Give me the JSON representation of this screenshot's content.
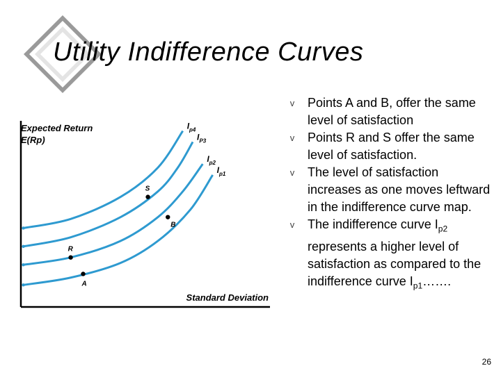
{
  "slide": {
    "title": "Utility Indifference Curves",
    "page_number": "26"
  },
  "bullets": [
    {
      "marker": "v",
      "text": "Points A and B, offer the same level of satisfaction"
    },
    {
      "marker": "v",
      "text": "Points R and S offer the same level of satisfaction."
    },
    {
      "marker": "v",
      "text": "The level of satisfaction increases as one moves leftward in the indifference curve map."
    },
    {
      "marker": "v",
      "parts": {
        "before": "The indifference curve I",
        "sub1": "p2",
        "middle": " represents a higher level of satisfaction as compared to the indifference curve I",
        "sub2": "p1",
        "after": "……."
      }
    }
  ],
  "chart_data": {
    "type": "line",
    "title": "",
    "xlabel": "Standard Deviation",
    "ylabel_line1": "Expected Return",
    "ylabel_line2": "E(Rp)",
    "xlim": [
      0,
      10
    ],
    "ylim": [
      0,
      10
    ],
    "grid": false,
    "series": [
      {
        "name": "Ip4",
        "x": [
          0.1,
          2,
          4,
          5.5,
          6.5
        ],
        "y": [
          4.3,
          4.8,
          6.0,
          7.6,
          9.6
        ]
      },
      {
        "name": "Ip3",
        "x": [
          0.1,
          2,
          4,
          5.5,
          6.3,
          6.9
        ],
        "y": [
          3.3,
          3.8,
          4.9,
          6.3,
          7.6,
          9.0
        ]
      },
      {
        "name": "Ip2",
        "x": [
          0.1,
          2,
          4,
          5.5,
          6.5,
          7.3
        ],
        "y": [
          2.3,
          2.7,
          3.6,
          4.9,
          6.3,
          7.8
        ]
      },
      {
        "name": "Ip1",
        "x": [
          0.1,
          2,
          4,
          5.5,
          6.8,
          7.7
        ],
        "y": [
          1.2,
          1.6,
          2.4,
          3.6,
          5.3,
          7.2
        ]
      }
    ],
    "curve_labels": [
      {
        "base": "I",
        "sub": "p4"
      },
      {
        "base": "I",
        "sub": "P3"
      },
      {
        "base": "I",
        "sub": "p2"
      },
      {
        "base": "I",
        "sub": "p1"
      }
    ],
    "points": [
      {
        "label": "S",
        "x": 5.1,
        "y": 6.0
      },
      {
        "label": "B",
        "x": 5.9,
        "y": 4.9
      },
      {
        "label": "R",
        "x": 2.0,
        "y": 2.7
      },
      {
        "label": "A",
        "x": 2.5,
        "y": 1.8
      }
    ]
  },
  "colors": {
    "curve": "#2e9ad0",
    "axis": "#000000",
    "point": "#000000",
    "deco_dark": "#9a9a9a",
    "deco_light": "#e4e4e4"
  }
}
